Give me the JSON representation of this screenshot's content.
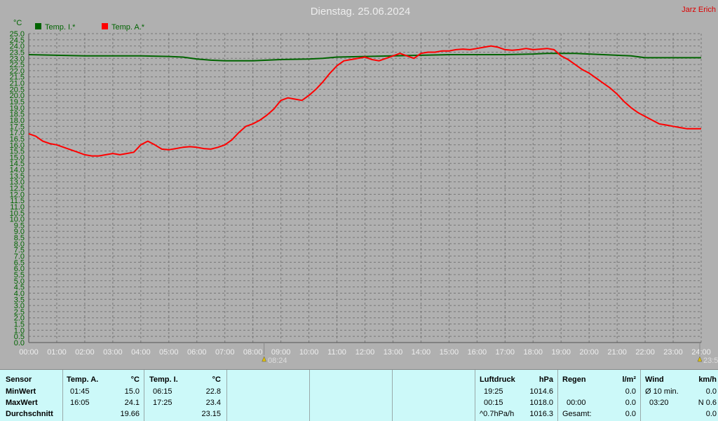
{
  "title": "Dienstag. 25.06.2024",
  "author": "Jarz Erich",
  "chart_data": {
    "type": "line",
    "y_unit": "°C",
    "ylim": [
      0,
      25
    ],
    "y_ticks": [
      "0.0",
      "0.5",
      "1.0",
      "1.5",
      "2.0",
      "2.5",
      "3.0",
      "3.5",
      "4.0",
      "4.5",
      "5.0",
      "5.5",
      "6.0",
      "6.5",
      "7.0",
      "7.5",
      "8.0",
      "8.5",
      "9.0",
      "9.5",
      "10.0",
      "10.5",
      "11.0",
      "11.5",
      "12.0",
      "12.5",
      "13.0",
      "13.5",
      "14.0",
      "14.5",
      "15.0",
      "15.5",
      "16.0",
      "16.5",
      "17.0",
      "17.5",
      "18.0",
      "18.5",
      "19.0",
      "19.5",
      "20.0",
      "20.5",
      "21.0",
      "21.5",
      "22.0",
      "22.5",
      "23.0",
      "23.5",
      "24.0",
      "24.5",
      "25.0"
    ],
    "x_ticks": [
      "00:00",
      "01:00",
      "02:00",
      "03:00",
      "04:00",
      "05:00",
      "06:00",
      "07:00",
      "08:00",
      "09:00",
      "10:00",
      "11:00",
      "12:00",
      "13:00",
      "14:00",
      "15:00",
      "16:00",
      "17:00",
      "18:00",
      "19:00",
      "20:00",
      "21:00",
      "22:00",
      "23:00",
      "24:00"
    ],
    "grid": true,
    "legend_position": "top-left",
    "sunrise_label": "08:24",
    "sunset_label": "23:5",
    "series": [
      {
        "name": "Temp. I.*",
        "color": "#006400",
        "x": [
          0,
          1,
          2,
          3,
          4,
          5,
          5.5,
          6,
          6.5,
          7,
          8,
          8.5,
          9,
          10,
          10.5,
          11,
          12,
          13,
          14,
          15,
          16,
          17,
          18,
          18.5,
          19,
          19.5,
          20,
          20.5,
          21,
          21.5,
          22,
          23,
          24
        ],
        "y": [
          23.3,
          23.25,
          23.2,
          23.2,
          23.2,
          23.15,
          23.1,
          22.95,
          22.85,
          22.8,
          22.8,
          22.85,
          22.9,
          22.95,
          23.0,
          23.1,
          23.15,
          23.2,
          23.25,
          23.3,
          23.3,
          23.3,
          23.35,
          23.4,
          23.4,
          23.4,
          23.35,
          23.3,
          23.25,
          23.2,
          23.05,
          23.05,
          23.05
        ]
      },
      {
        "name": "Temp. A.*",
        "color": "#ff0000",
        "x": [
          0,
          0.25,
          0.5,
          0.75,
          1,
          1.25,
          1.5,
          1.75,
          2,
          2.25,
          2.5,
          2.75,
          3,
          3.25,
          3.5,
          3.75,
          4,
          4.25,
          4.5,
          4.75,
          5,
          5.25,
          5.5,
          5.75,
          6,
          6.25,
          6.5,
          6.75,
          7,
          7.25,
          7.5,
          7.75,
          8,
          8.25,
          8.5,
          8.75,
          9,
          9.25,
          9.5,
          9.75,
          10,
          10.25,
          10.5,
          10.75,
          11,
          11.25,
          11.5,
          11.75,
          12,
          12.25,
          12.5,
          12.75,
          13,
          13.25,
          13.5,
          13.75,
          14,
          14.25,
          14.5,
          14.75,
          15,
          15.25,
          15.5,
          15.75,
          16,
          16.25,
          16.5,
          16.75,
          17,
          17.25,
          17.5,
          17.75,
          18,
          18.25,
          18.5,
          18.75,
          19,
          19.25,
          19.5,
          19.75,
          20,
          20.25,
          20.5,
          20.75,
          21,
          21.25,
          21.5,
          21.75,
          22,
          22.25,
          22.5,
          22.75,
          23,
          23.25,
          23.5,
          23.75,
          24
        ],
        "y": [
          16.9,
          16.7,
          16.3,
          16.1,
          16.0,
          15.8,
          15.6,
          15.4,
          15.2,
          15.1,
          15.1,
          15.2,
          15.3,
          15.2,
          15.3,
          15.4,
          16.0,
          16.3,
          16.0,
          15.65,
          15.6,
          15.7,
          15.8,
          15.85,
          15.8,
          15.7,
          15.65,
          15.8,
          16.0,
          16.4,
          17.0,
          17.5,
          17.7,
          18.0,
          18.4,
          18.9,
          19.6,
          19.8,
          19.7,
          19.6,
          20.0,
          20.5,
          21.1,
          21.8,
          22.4,
          22.8,
          22.9,
          23.0,
          23.1,
          22.9,
          22.8,
          23.0,
          23.2,
          23.4,
          23.2,
          23.0,
          23.4,
          23.5,
          23.5,
          23.6,
          23.6,
          23.7,
          23.75,
          23.7,
          23.8,
          23.9,
          24.0,
          23.9,
          23.7,
          23.65,
          23.7,
          23.8,
          23.7,
          23.75,
          23.8,
          23.7,
          23.2,
          22.9,
          22.5,
          22.1,
          21.8,
          21.4,
          21.0,
          20.6,
          20.1,
          19.5,
          19.0,
          18.6,
          18.3,
          18.0,
          17.7,
          17.6,
          17.5,
          17.4,
          17.3,
          17.3,
          17.3
        ]
      }
    ]
  },
  "stats": {
    "sensor_header": "Sensor",
    "row_labels": [
      "MinWert",
      "MaxWert",
      "Durchschnitt"
    ],
    "temp_a": {
      "header": "Temp. A.",
      "unit": "°C",
      "min_time": "01:45",
      "min_val": "15.0",
      "max_time": "16:05",
      "max_val": "24.1",
      "avg_val": "19.66"
    },
    "temp_i": {
      "header": "Temp. I.",
      "unit": "°C",
      "min_time": "06:15",
      "min_val": "22.8",
      "max_time": "17:25",
      "max_val": "23.4",
      "avg_val": "23.15"
    },
    "pressure": {
      "header": "Luftdruck",
      "unit": "hPa",
      "min_time": "19:25",
      "min_val": "1014.6",
      "max_time": "00:15",
      "max_val": "1018.0",
      "trend_label": "^0.7hPa/h",
      "trend_val": "1016.3"
    },
    "rain": {
      "header": "Regen",
      "unit": "l/m²",
      "row2_time": "00:00",
      "row2_val": "0.0",
      "row1_val": "0.0",
      "total_label": "Gesamt:",
      "total_val": "0.0"
    },
    "wind": {
      "header": "Wind",
      "unit": "km/h",
      "avg_label": "Ø 10 min.",
      "avg_val": "0.0",
      "max_time": "03:20",
      "max_val": "N 0.6",
      "row3_val": "0.0"
    }
  }
}
